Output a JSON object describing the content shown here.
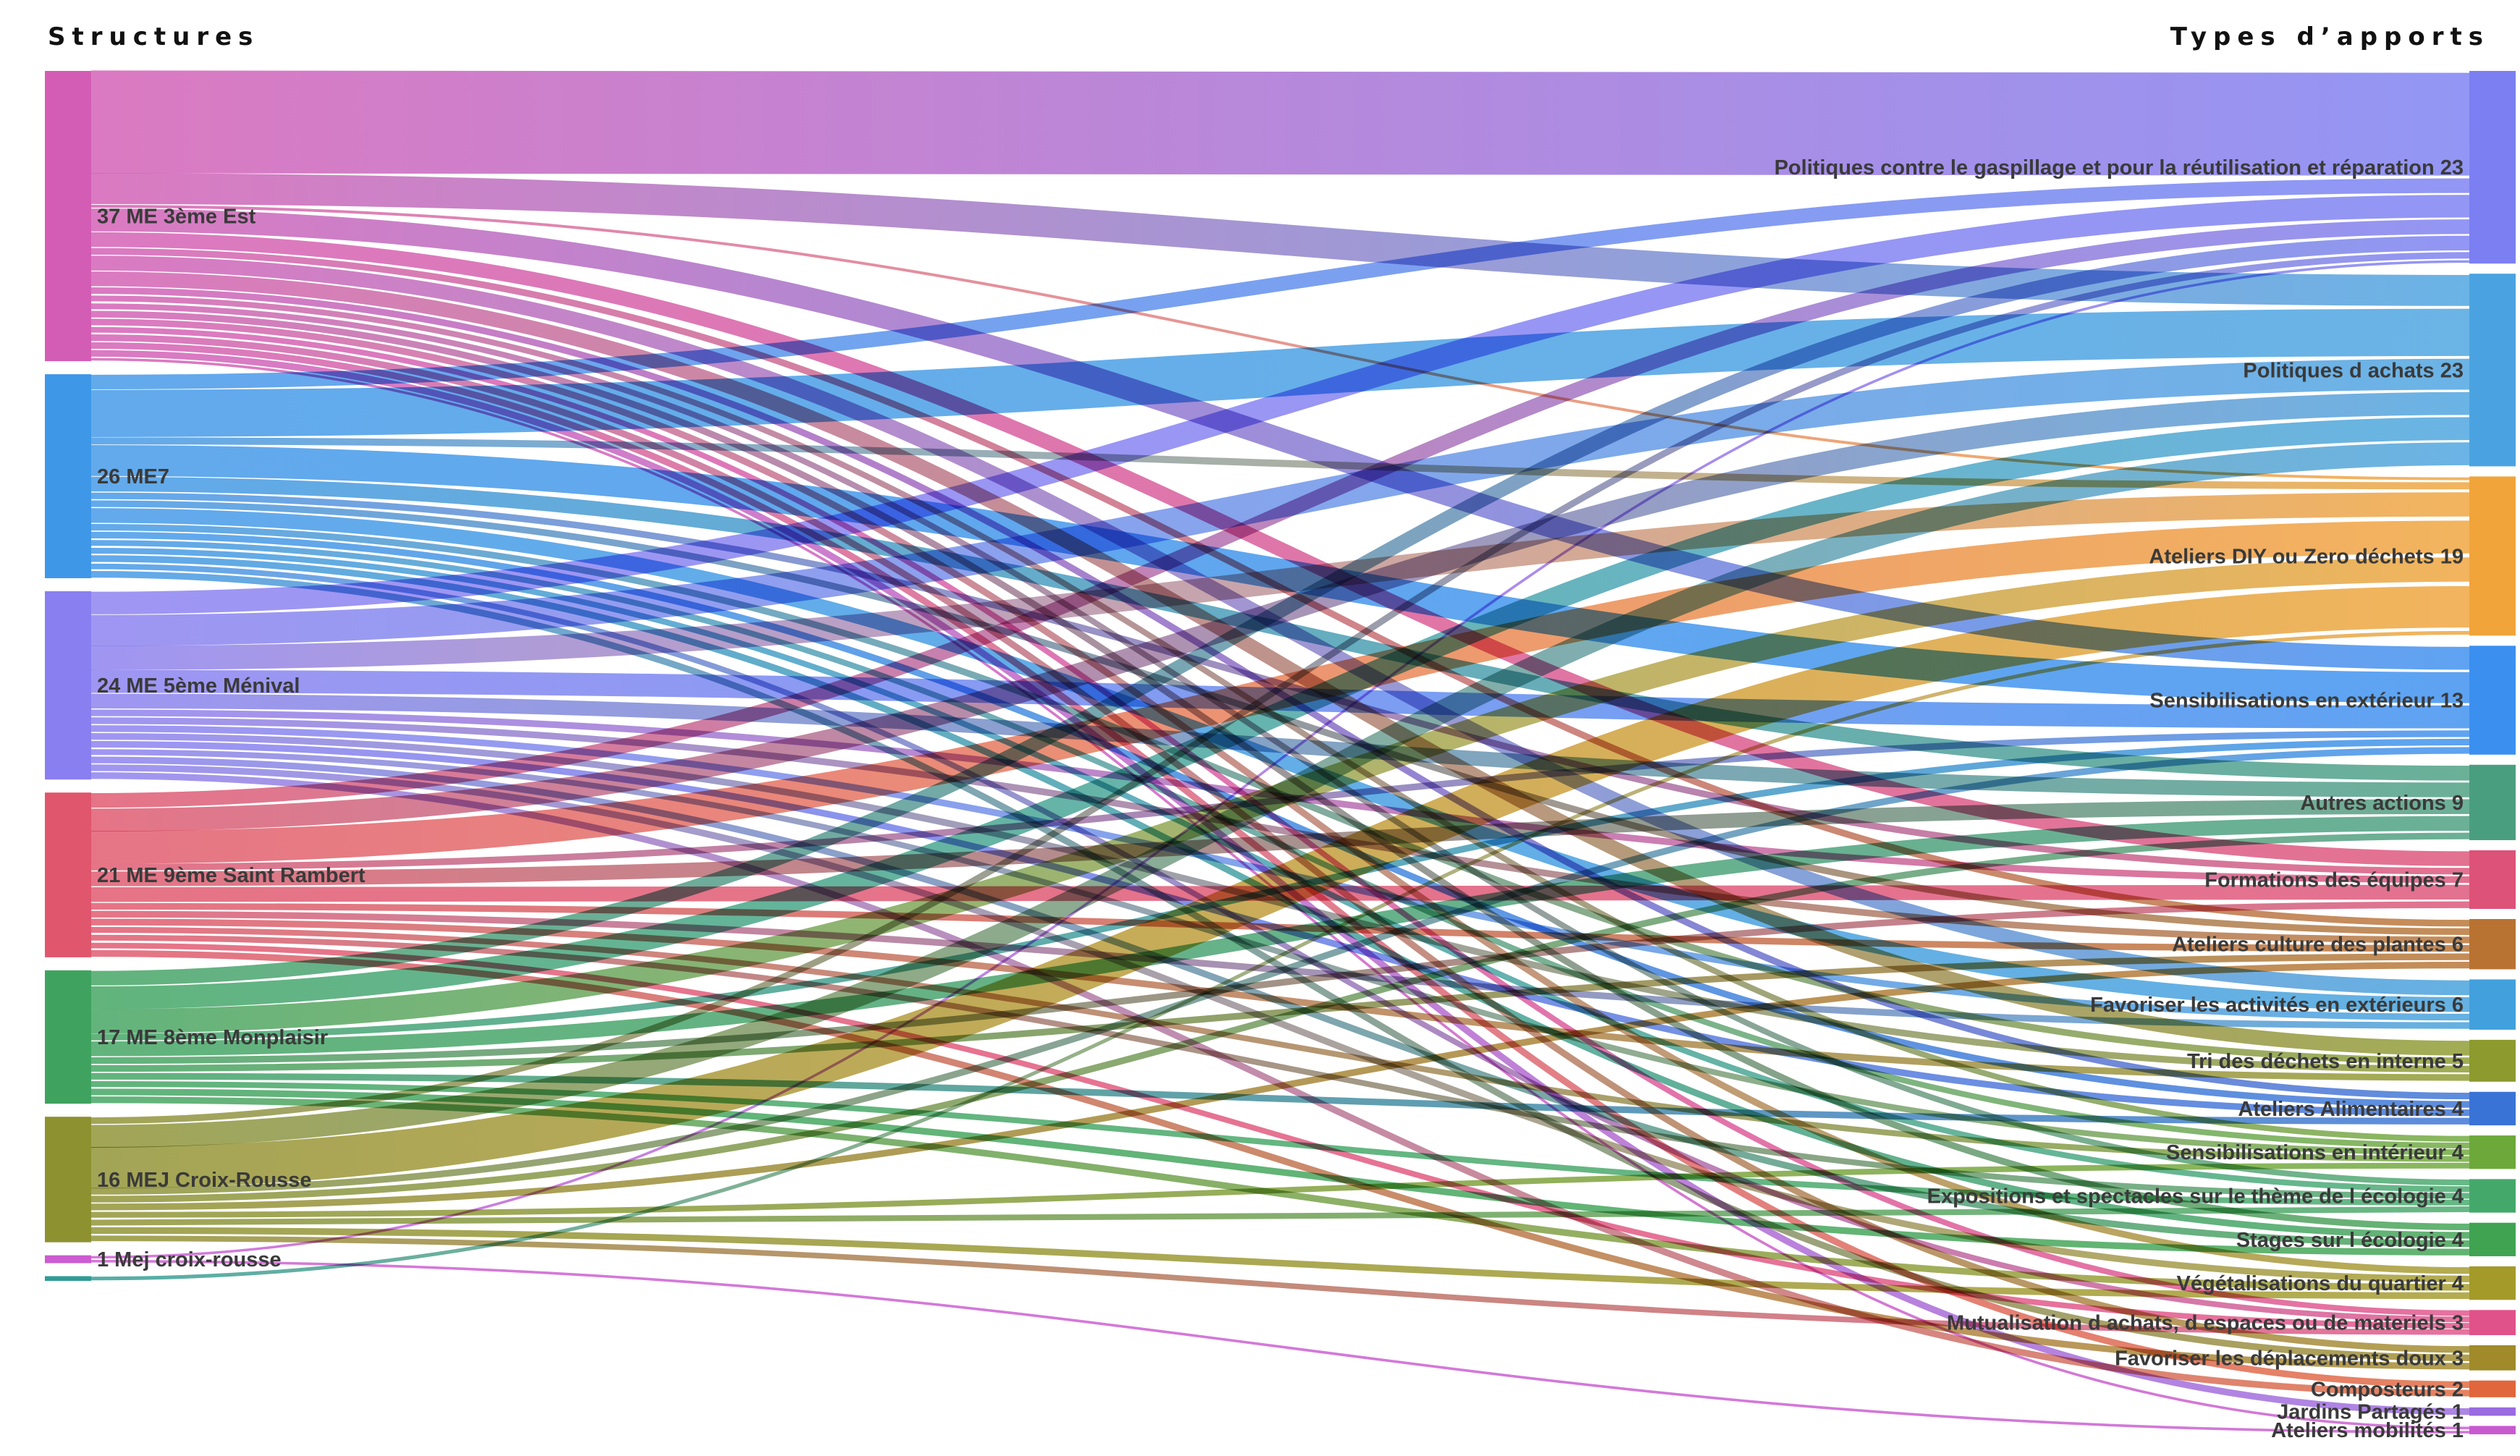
{
  "headers": {
    "left": "Structures",
    "right": "Types d’apports"
  },
  "sources": [
    {
      "id": "s_3est",
      "label": "37 ME 3ème Est",
      "value": 37,
      "color": "#d35db4"
    },
    {
      "id": "s_me7",
      "label": "26 ME7",
      "value": 26,
      "color": "#3f97e8"
    },
    {
      "id": "s_menival",
      "label": "24 ME 5ème Ménival",
      "value": 24,
      "color": "#8a7ff0"
    },
    {
      "id": "s_rambert",
      "label": "21 ME 9ème Saint Rambert",
      "value": 21,
      "color": "#e0566c"
    },
    {
      "id": "s_monplaisir",
      "label": "17 ME 8ème Monplaisir",
      "value": 17,
      "color": "#3fa35f"
    },
    {
      "id": "s_croixrousse",
      "label": "16 MEJ Croix-Rousse",
      "value": 16,
      "color": "#8e9130"
    },
    {
      "id": "s_mej1",
      "label": "1 Mej croix-rousse",
      "value": 1,
      "color": "#cc5bd1"
    },
    {
      "id": "s_unlabeled",
      "label": "",
      "value": 0.6,
      "color": "#2f9c95"
    }
  ],
  "targets": [
    {
      "id": "t_gaspi",
      "label": "Politiques contre le gaspillage et pour la réutilisation et réparation 23",
      "value": 23,
      "color": "#7b7ff2"
    },
    {
      "id": "t_achats",
      "label": "Politiques d achats 23",
      "value": 23,
      "color": "#4aa3e0"
    },
    {
      "id": "t_diy",
      "label": "Ateliers DIY ou Zero déchets 19",
      "value": 19,
      "color": "#f0a43a"
    },
    {
      "id": "t_sensiext",
      "label": "Sensibilisations en extérieur 13",
      "value": 13,
      "color": "#3b8fef"
    },
    {
      "id": "t_autres",
      "label": "Autres actions 9",
      "value": 9,
      "color": "#4a9e80"
    },
    {
      "id": "t_formations",
      "label": "Formations des équipes 7",
      "value": 7,
      "color": "#dd5278"
    },
    {
      "id": "t_plantes",
      "label": "Ateliers culture des plantes 6",
      "value": 6,
      "color": "#b87332"
    },
    {
      "id": "t_activext",
      "label": "Favoriser les activités en extérieurs 6",
      "value": 6,
      "color": "#42a0dc"
    },
    {
      "id": "t_tri",
      "label": "Tri des déchets en interne 5",
      "value": 5,
      "color": "#8c9a2e"
    },
    {
      "id": "t_alim",
      "label": "Ateliers Alimentaires 4",
      "value": 4,
      "color": "#3a73d6"
    },
    {
      "id": "t_sensiint",
      "label": "Sensibilisations en intérieur 4",
      "value": 4,
      "color": "#6da83a"
    },
    {
      "id": "t_expo",
      "label": "Expositions et spectacles sur le thème de l écologie 4",
      "value": 4,
      "color": "#45a86b"
    },
    {
      "id": "t_stages",
      "label": "Stages sur l écologie 4",
      "value": 4,
      "color": "#3fa352"
    },
    {
      "id": "t_vegetal",
      "label": "Végétalisations du quartier 4",
      "value": 4,
      "color": "#a39a2a"
    },
    {
      "id": "t_mutual",
      "label": "Mutualisation d achats, d espaces ou de materiels 3",
      "value": 3,
      "color": "#e0528a"
    },
    {
      "id": "t_deplac",
      "label": "Favoriser les déplacements doux 3",
      "value": 3,
      "color": "#a08a2a"
    },
    {
      "id": "t_compost",
      "label": "Composteurs 2",
      "value": 2,
      "color": "#e0663c"
    },
    {
      "id": "t_jardins",
      "label": "Jardins Partagés 1",
      "value": 1,
      "color": "#9a6ae0"
    },
    {
      "id": "t_mobil",
      "label": "Ateliers mobilités 1",
      "value": 1,
      "color": "#c85ad0"
    }
  ],
  "links": [
    {
      "source": "s_3est",
      "target": "t_gaspi",
      "value": 13
    },
    {
      "source": "s_3est",
      "target": "t_achats",
      "value": 4
    },
    {
      "source": "s_3est",
      "target": "t_diy",
      "value": 0.5
    },
    {
      "source": "s_3est",
      "target": "t_sensiext",
      "value": 3
    },
    {
      "source": "s_3est",
      "target": "t_formations",
      "value": 2
    },
    {
      "source": "s_3est",
      "target": "t_plantes",
      "value": 1
    },
    {
      "source": "s_3est",
      "target": "t_activext",
      "value": 2
    },
    {
      "source": "s_3est",
      "target": "t_tri",
      "value": 2
    },
    {
      "source": "s_3est",
      "target": "t_alim",
      "value": 1
    },
    {
      "source": "s_3est",
      "target": "t_sensiint",
      "value": 1
    },
    {
      "source": "s_3est",
      "target": "t_expo",
      "value": 1
    },
    {
      "source": "s_3est",
      "target": "t_stages",
      "value": 1
    },
    {
      "source": "s_3est",
      "target": "t_vegetal",
      "value": 1
    },
    {
      "source": "s_3est",
      "target": "t_mutual",
      "value": 1
    },
    {
      "source": "s_3est",
      "target": "t_deplac",
      "value": 1
    },
    {
      "source": "s_3est",
      "target": "t_compost",
      "value": 1
    },
    {
      "source": "s_3est",
      "target": "t_jardins",
      "value": 1
    },
    {
      "source": "s_3est",
      "target": "t_mobil",
      "value": 0.5
    },
    {
      "source": "s_me7",
      "target": "t_gaspi",
      "value": 2
    },
    {
      "source": "s_me7",
      "target": "t_achats",
      "value": 6
    },
    {
      "source": "s_me7",
      "target": "t_diy",
      "value": 1
    },
    {
      "source": "s_me7",
      "target": "t_sensiext",
      "value": 4
    },
    {
      "source": "s_me7",
      "target": "t_autres",
      "value": 2
    },
    {
      "source": "s_me7",
      "target": "t_formations",
      "value": 1
    },
    {
      "source": "s_me7",
      "target": "t_plantes",
      "value": 1
    },
    {
      "source": "s_me7",
      "target": "t_activext",
      "value": 2
    },
    {
      "source": "s_me7",
      "target": "t_tri",
      "value": 1
    },
    {
      "source": "s_me7",
      "target": "t_alim",
      "value": 1
    },
    {
      "source": "s_me7",
      "target": "t_sensiint",
      "value": 1
    },
    {
      "source": "s_me7",
      "target": "t_expo",
      "value": 1
    },
    {
      "source": "s_me7",
      "target": "t_stages",
      "value": 1
    },
    {
      "source": "s_me7",
      "target": "t_mutual",
      "value": 1
    },
    {
      "source": "s_me7",
      "target": "t_deplac",
      "value": 1
    },
    {
      "source": "s_menival",
      "target": "t_gaspi",
      "value": 3
    },
    {
      "source": "s_menival",
      "target": "t_achats",
      "value": 4
    },
    {
      "source": "s_menival",
      "target": "t_diy",
      "value": 3
    },
    {
      "source": "s_menival",
      "target": "t_sensiext",
      "value": 3
    },
    {
      "source": "s_menival",
      "target": "t_autres",
      "value": 2
    },
    {
      "source": "s_menival",
      "target": "t_formations",
      "value": 1
    },
    {
      "source": "s_menival",
      "target": "t_plantes",
      "value": 1
    },
    {
      "source": "s_menival",
      "target": "t_activext",
      "value": 1
    },
    {
      "source": "s_menival",
      "target": "t_tri",
      "value": 1
    },
    {
      "source": "s_menival",
      "target": "t_alim",
      "value": 1
    },
    {
      "source": "s_menival",
      "target": "t_sensiint",
      "value": 1
    },
    {
      "source": "s_menival",
      "target": "t_stages",
      "value": 1
    },
    {
      "source": "s_menival",
      "target": "t_vegetal",
      "value": 1
    },
    {
      "source": "s_menival",
      "target": "t_compost",
      "value": 1
    },
    {
      "source": "s_rambert",
      "target": "t_gaspi",
      "value": 2
    },
    {
      "source": "s_rambert",
      "target": "t_achats",
      "value": 3
    },
    {
      "source": "s_rambert",
      "target": "t_diy",
      "value": 4
    },
    {
      "source": "s_rambert",
      "target": "t_sensiext",
      "value": 1
    },
    {
      "source": "s_rambert",
      "target": "t_autres",
      "value": 2
    },
    {
      "source": "s_rambert",
      "target": "t_formations",
      "value": 2
    },
    {
      "source": "s_rambert",
      "target": "t_plantes",
      "value": 1
    },
    {
      "source": "s_rambert",
      "target": "t_activext",
      "value": 1
    },
    {
      "source": "s_rambert",
      "target": "t_tri",
      "value": 1
    },
    {
      "source": "s_rambert",
      "target": "t_sensiint",
      "value": 1
    },
    {
      "source": "s_rambert",
      "target": "t_expo",
      "value": 1
    },
    {
      "source": "s_rambert",
      "target": "t_mutual",
      "value": 1
    },
    {
      "source": "s_rambert",
      "target": "t_deplac",
      "value": 1
    },
    {
      "source": "s_monplaisir",
      "target": "t_gaspi",
      "value": 2
    },
    {
      "source": "s_monplaisir",
      "target": "t_achats",
      "value": 3
    },
    {
      "source": "s_monplaisir",
      "target": "t_diy",
      "value": 3
    },
    {
      "source": "s_monplaisir",
      "target": "t_sensiext",
      "value": 1
    },
    {
      "source": "s_monplaisir",
      "target": "t_autres",
      "value": 2
    },
    {
      "source": "s_monplaisir",
      "target": "t_formations",
      "value": 1
    },
    {
      "source": "s_monplaisir",
      "target": "t_plantes",
      "value": 1
    },
    {
      "source": "s_monplaisir",
      "target": "t_alim",
      "value": 1
    },
    {
      "source": "s_monplaisir",
      "target": "t_expo",
      "value": 1
    },
    {
      "source": "s_monplaisir",
      "target": "t_stages",
      "value": 1
    },
    {
      "source": "s_monplaisir",
      "target": "t_vegetal",
      "value": 1
    },
    {
      "source": "s_croixrousse",
      "target": "t_gaspi",
      "value": 1
    },
    {
      "source": "s_croixrousse",
      "target": "t_achats",
      "value": 3
    },
    {
      "source": "s_croixrousse",
      "target": "t_diy",
      "value": 5
    },
    {
      "source": "s_croixrousse",
      "target": "t_sensiext",
      "value": 1
    },
    {
      "source": "s_croixrousse",
      "target": "t_autres",
      "value": 1
    },
    {
      "source": "s_croixrousse",
      "target": "t_plantes",
      "value": 1
    },
    {
      "source": "s_croixrousse",
      "target": "t_sensiint",
      "value": 1
    },
    {
      "source": "s_croixrousse",
      "target": "t_expo",
      "value": 1
    },
    {
      "source": "s_croixrousse",
      "target": "t_vegetal",
      "value": 1
    },
    {
      "source": "s_croixrousse",
      "target": "t_mutual",
      "value": 1
    },
    {
      "source": "s_mej1",
      "target": "t_gaspi",
      "value": 0.5
    },
    {
      "source": "s_mej1",
      "target": "t_mobil",
      "value": 0.5
    },
    {
      "source": "s_unlabeled",
      "target": "t_diy",
      "value": 0.6
    }
  ]
}
